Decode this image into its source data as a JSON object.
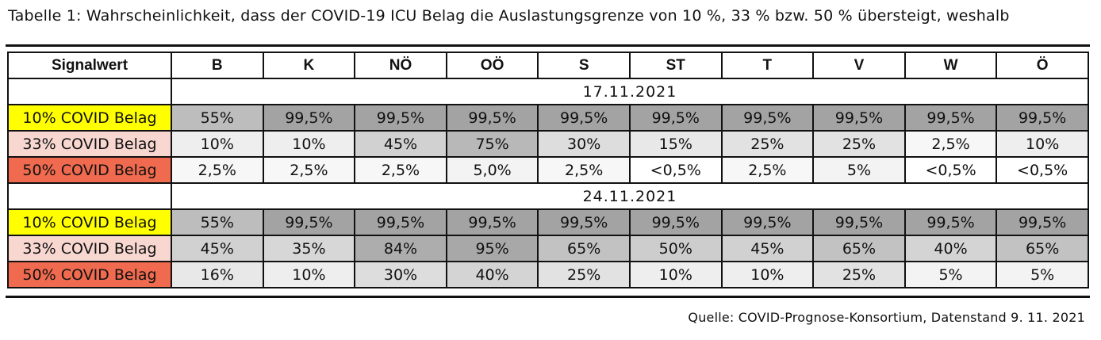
{
  "caption": "Tabelle 1: Wahrscheinlichkeit, dass der COVID-19 ICU Belag die Auslastungsgrenze von 10 %, 33 % bzw. 50 % übersteigt, weshalb",
  "source": "Quelle: COVID-Prognose-Konsortium, Datenstand 9. 11. 2021",
  "table": {
    "header": [
      "Signalwert",
      "B",
      "K",
      "NÖ",
      "OÖ",
      "S",
      "ST",
      "T",
      "V",
      "W",
      "Ö"
    ],
    "blocks": [
      {
        "date": "17.11.2021",
        "rows": [
          {
            "label": "10% COVID Belag",
            "label_color": "#ffff00",
            "values": [
              "55%",
              "99,5%",
              "99,5%",
              "99,5%",
              "99,5%",
              "99,5%",
              "99,5%",
              "99,5%",
              "99,5%",
              "99,5%"
            ],
            "shades": [
              "#bdbdbd",
              "#a3a3a3",
              "#a3a3a3",
              "#a3a3a3",
              "#a3a3a3",
              "#a3a3a3",
              "#a3a3a3",
              "#a3a3a3",
              "#a3a3a3",
              "#a3a3a3"
            ]
          },
          {
            "label": "33% COVID Belag",
            "label_color": "#f8d7d1",
            "values": [
              "10%",
              "10%",
              "45%",
              "75%",
              "30%",
              "15%",
              "25%",
              "25%",
              "2,5%",
              "10%"
            ],
            "shades": [
              "#eeeeee",
              "#eeeeee",
              "#d1d1d1",
              "#b8b8b8",
              "#dddddd",
              "#e8e8e8",
              "#e2e2e2",
              "#e2e2e2",
              "#f7f7f7",
              "#eeeeee"
            ]
          },
          {
            "label": "50% COVID Belag",
            "label_color": "#ef6a4e",
            "values": [
              "2,5%",
              "2,5%",
              "2,5%",
              "5,0%",
              "2,5%",
              "<0,5%",
              "2,5%",
              "5%",
              "<0,5%",
              "<0,5%"
            ],
            "shades": [
              "#f7f7f7",
              "#f7f7f7",
              "#f7f7f7",
              "#f3f3f3",
              "#f7f7f7",
              "#ffffff",
              "#f7f7f7",
              "#f3f3f3",
              "#ffffff",
              "#ffffff"
            ]
          }
        ]
      },
      {
        "date": "24.11.2021",
        "rows": [
          {
            "label": "10% COVID Belag",
            "label_color": "#ffff00",
            "values": [
              "55%",
              "99,5%",
              "99,5%",
              "99,5%",
              "99,5%",
              "99,5%",
              "99,5%",
              "99,5%",
              "99,5%",
              "99,5%"
            ],
            "shades": [
              "#bdbdbd",
              "#a3a3a3",
              "#a3a3a3",
              "#a3a3a3",
              "#a3a3a3",
              "#a3a3a3",
              "#a3a3a3",
              "#a3a3a3",
              "#a3a3a3",
              "#a3a3a3"
            ]
          },
          {
            "label": "33% COVID Belag",
            "label_color": "#f8d7d1",
            "values": [
              "45%",
              "35%",
              "84%",
              "95%",
              "65%",
              "50%",
              "45%",
              "65%",
              "40%",
              "65%"
            ],
            "shades": [
              "#d1d1d1",
              "#d7d7d7",
              "#adadad",
              "#a8a8a8",
              "#c2c2c2",
              "#cdcdcd",
              "#d1d1d1",
              "#c2c2c2",
              "#d4d4d4",
              "#c2c2c2"
            ]
          },
          {
            "label": "50% COVID Belag",
            "label_color": "#ef6a4e",
            "values": [
              "16%",
              "10%",
              "30%",
              "40%",
              "25%",
              "10%",
              "10%",
              "25%",
              "5%",
              "5%"
            ],
            "shades": [
              "#e8e8e8",
              "#eeeeee",
              "#dddddd",
              "#d4d4d4",
              "#e2e2e2",
              "#eeeeee",
              "#eeeeee",
              "#e2e2e2",
              "#f3f3f3",
              "#f3f3f3"
            ]
          }
        ]
      }
    ]
  }
}
